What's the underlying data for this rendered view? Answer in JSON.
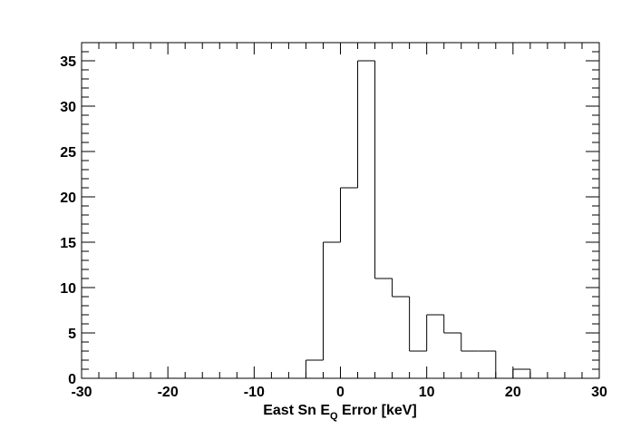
{
  "chart_data": {
    "type": "bar",
    "title": "",
    "xlabel": {
      "prefix": "East Sn E",
      "subscript": "Q",
      "suffix": " Error [keV]"
    },
    "ylabel": "",
    "xlim": [
      -30,
      30
    ],
    "ylim": [
      0,
      37
    ],
    "bin_width": 2,
    "bin_edges_low": [
      -4,
      -2,
      0,
      2,
      4,
      6,
      8,
      10,
      12,
      14,
      16,
      18,
      20
    ],
    "values": [
      2,
      15,
      21,
      35,
      11,
      9,
      3,
      7,
      5,
      3,
      3,
      0,
      1
    ],
    "x_ticks": [
      "-30",
      "-20",
      "-10",
      "0",
      "10",
      "20",
      "30"
    ],
    "y_ticks": [
      "0",
      "5",
      "10",
      "15",
      "20",
      "25",
      "30",
      "35"
    ],
    "grid": false,
    "legend": "none"
  }
}
